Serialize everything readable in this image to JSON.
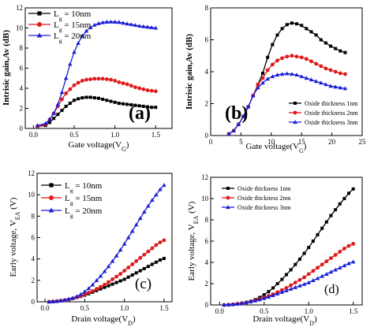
{
  "chart_data": [
    {
      "type": "line",
      "panel_label": "a",
      "panel_label_text": "(a)",
      "xlabel": "Gate voltage(V",
      "xlabel_sub": "G",
      "xlabel_close": ")",
      "ylabel": "Intrisic gain,Av (dB)",
      "xlim": [
        -0.1,
        1.7
      ],
      "ylim": [
        0,
        12
      ],
      "xticks": [
        0.0,
        0.5,
        1.0,
        1.5
      ],
      "xtick_labels": [
        "0.0",
        "0.5",
        "1.0",
        "1.5"
      ],
      "yticks": [
        0,
        2,
        4,
        6,
        8,
        10,
        12
      ],
      "ytick_labels": [
        "0",
        "2",
        "4",
        "6",
        "8",
        "10",
        "12"
      ],
      "legend_placement": "top-left",
      "series": [
        {
          "name": "L",
          "name_sub": "g",
          "name_rest": " = 10nm",
          "color": "#000000",
          "marker": "square",
          "x": [
            0.05,
            0.15,
            0.2,
            0.25,
            0.3,
            0.35,
            0.4,
            0.45,
            0.5,
            0.55,
            0.6,
            0.65,
            0.7,
            0.75,
            0.8,
            0.85,
            0.9,
            0.95,
            1.0,
            1.05,
            1.1,
            1.15,
            1.2,
            1.25,
            1.3,
            1.35,
            1.4,
            1.45,
            1.5
          ],
          "y": [
            0.2,
            0.3,
            0.6,
            1.0,
            1.4,
            1.8,
            2.2,
            2.5,
            2.8,
            2.95,
            3.05,
            3.1,
            3.1,
            3.05,
            3.0,
            2.9,
            2.8,
            2.7,
            2.6,
            2.5,
            2.45,
            2.4,
            2.35,
            2.3,
            2.25,
            2.2,
            2.15,
            2.1,
            2.1
          ]
        },
        {
          "name": "L",
          "name_sub": "g",
          "name_rest": " = 15nm",
          "color": "#e0191b",
          "marker": "circle",
          "x": [
            0.05,
            0.15,
            0.2,
            0.25,
            0.3,
            0.35,
            0.4,
            0.45,
            0.5,
            0.55,
            0.6,
            0.65,
            0.7,
            0.75,
            0.8,
            0.85,
            0.9,
            0.95,
            1.0,
            1.05,
            1.1,
            1.15,
            1.2,
            1.25,
            1.3,
            1.35,
            1.4,
            1.45,
            1.5
          ],
          "y": [
            0.2,
            0.4,
            0.9,
            1.5,
            2.2,
            2.9,
            3.5,
            3.9,
            4.3,
            4.55,
            4.75,
            4.85,
            4.9,
            4.95,
            4.95,
            4.95,
            4.9,
            4.85,
            4.75,
            4.6,
            4.5,
            4.4,
            4.25,
            4.1,
            4.0,
            3.9,
            3.8,
            3.75,
            3.7
          ]
        },
        {
          "name": "L",
          "name_sub": "g",
          "name_rest": " = 20nm",
          "color": "#1a1fd6",
          "marker": "triangle",
          "x": [
            0.05,
            0.15,
            0.2,
            0.25,
            0.3,
            0.35,
            0.4,
            0.45,
            0.5,
            0.55,
            0.6,
            0.65,
            0.7,
            0.75,
            0.8,
            0.85,
            0.9,
            0.95,
            1.0,
            1.05,
            1.1,
            1.15,
            1.2,
            1.25,
            1.3,
            1.35,
            1.4,
            1.45,
            1.5
          ],
          "y": [
            0.3,
            0.5,
            0.9,
            1.5,
            2.4,
            3.6,
            5.0,
            6.4,
            7.6,
            8.5,
            9.2,
            9.7,
            10.05,
            10.3,
            10.45,
            10.55,
            10.6,
            10.62,
            10.6,
            10.58,
            10.5,
            10.42,
            10.35,
            10.28,
            10.2,
            10.15,
            10.1,
            10.05,
            10.0
          ]
        }
      ]
    },
    {
      "type": "line",
      "panel_label": "b",
      "panel_label_text": "(b)",
      "xlabel": "Gate voltage(V",
      "xlabel_sub": "G",
      "xlabel_close": ")",
      "ylabel": "Intrisic gain,Av (dB)",
      "xlim": [
        0,
        25
      ],
      "ylim": [
        0,
        8
      ],
      "xticks": [
        0,
        5,
        10,
        15,
        20,
        25
      ],
      "xtick_labels": [
        "0",
        "5",
        "10",
        "15",
        "20",
        "25"
      ],
      "yticks": [
        0,
        2,
        4,
        6,
        8
      ],
      "ytick_labels": [
        "0",
        "2",
        "4",
        "6",
        "8"
      ],
      "legend_placement": "bottom-right",
      "series": [
        {
          "name": "Oxide thickness 1nm",
          "color": "#000000",
          "marker": "square",
          "x": [
            3,
            3.8,
            4.6,
            5.4,
            6.2,
            7,
            7.8,
            8.6,
            9.4,
            10.2,
            11,
            11.8,
            12.6,
            13.4,
            14.2,
            15,
            15.8,
            16.6,
            17.4,
            18.2,
            19,
            19.8,
            20.6,
            21.4,
            22.2
          ],
          "y": [
            0.1,
            0.3,
            0.7,
            1.2,
            1.8,
            2.5,
            3.2,
            3.9,
            4.9,
            5.7,
            6.3,
            6.7,
            6.95,
            7.05,
            7.0,
            6.9,
            6.7,
            6.5,
            6.3,
            6.0,
            5.8,
            5.6,
            5.45,
            5.3,
            5.2
          ]
        },
        {
          "name": "Oxide thickness 2nm",
          "color": "#e0191b",
          "marker": "circle",
          "x": [
            3,
            3.8,
            4.6,
            5.4,
            6.2,
            7,
            7.8,
            8.6,
            9.4,
            10.2,
            11,
            11.8,
            12.6,
            13.4,
            14.2,
            15,
            15.8,
            16.6,
            17.4,
            18.2,
            19,
            19.8,
            20.6,
            21.4,
            22.2
          ],
          "y": [
            0.1,
            0.3,
            0.7,
            1.2,
            1.8,
            2.5,
            3.2,
            3.6,
            4.1,
            4.45,
            4.7,
            4.85,
            4.95,
            5.0,
            4.95,
            4.9,
            4.8,
            4.65,
            4.5,
            4.35,
            4.2,
            4.1,
            4.0,
            3.9,
            3.85
          ]
        },
        {
          "name": "Oxide thickness 3nm",
          "color": "#1a1fd6",
          "marker": "triangle",
          "x": [
            3,
            3.8,
            4.6,
            5.4,
            6.2,
            7,
            7.8,
            8.6,
            9.4,
            10.2,
            11,
            11.8,
            12.6,
            13.4,
            14.2,
            15,
            15.8,
            16.6,
            17.4,
            18.2,
            19,
            19.8,
            20.6,
            21.4,
            22.2
          ],
          "y": [
            0.1,
            0.3,
            0.7,
            1.2,
            1.8,
            2.5,
            3.0,
            3.3,
            3.55,
            3.7,
            3.8,
            3.85,
            3.88,
            3.85,
            3.8,
            3.7,
            3.6,
            3.5,
            3.4,
            3.3,
            3.2,
            3.1,
            3.05,
            3.0,
            2.95
          ]
        }
      ]
    },
    {
      "type": "line",
      "panel_label": "c",
      "panel_label_text": "(c)",
      "xlabel": "Drain voltage(V",
      "xlabel_sub": "D",
      "xlabel_close": ")",
      "ylabel": "Early voltage, V",
      "ylabel_sub": "EA",
      "ylabel_close": " (V)",
      "xlim": [
        -0.1,
        1.6
      ],
      "ylim": [
        0,
        12
      ],
      "xticks": [
        0.0,
        0.5,
        1.0,
        1.5
      ],
      "xtick_labels": [
        "0.0",
        "0.5",
        "1.0",
        "1.5"
      ],
      "yticks": [
        0,
        2,
        4,
        6,
        8,
        10,
        12
      ],
      "ytick_labels": [
        "0",
        "2",
        "4",
        "6",
        "8",
        "10",
        "12"
      ],
      "legend_placement": "top-left",
      "series": [
        {
          "name": "L",
          "name_sub": "g",
          "name_rest": " = 10nm",
          "color": "#000000",
          "marker": "square",
          "x": [
            0.05,
            0.1,
            0.15,
            0.2,
            0.25,
            0.3,
            0.35,
            0.4,
            0.45,
            0.5,
            0.55,
            0.6,
            0.65,
            0.7,
            0.75,
            0.8,
            0.85,
            0.9,
            0.95,
            1.0,
            1.05,
            1.1,
            1.15,
            1.2,
            1.25,
            1.3,
            1.35,
            1.4,
            1.45,
            1.5
          ],
          "y": [
            0.0,
            0.02,
            0.05,
            0.1,
            0.15,
            0.22,
            0.3,
            0.4,
            0.5,
            0.62,
            0.75,
            0.9,
            1.05,
            1.2,
            1.35,
            1.5,
            1.65,
            1.8,
            1.95,
            2.1,
            2.3,
            2.5,
            2.7,
            2.9,
            3.1,
            3.3,
            3.5,
            3.7,
            3.9,
            4.05
          ]
        },
        {
          "name": "L",
          "name_sub": "g",
          "name_rest": " = 15nm",
          "color": "#e0191b",
          "marker": "circle",
          "x": [
            0.05,
            0.1,
            0.15,
            0.2,
            0.25,
            0.3,
            0.35,
            0.4,
            0.45,
            0.5,
            0.55,
            0.6,
            0.65,
            0.7,
            0.75,
            0.8,
            0.85,
            0.9,
            0.95,
            1.0,
            1.05,
            1.1,
            1.15,
            1.2,
            1.25,
            1.3,
            1.35,
            1.4,
            1.45,
            1.5
          ],
          "y": [
            0.0,
            0.02,
            0.05,
            0.1,
            0.15,
            0.22,
            0.32,
            0.42,
            0.55,
            0.7,
            0.85,
            1.0,
            1.2,
            1.4,
            1.6,
            1.85,
            2.1,
            2.35,
            2.6,
            2.9,
            3.2,
            3.5,
            3.8,
            4.1,
            4.4,
            4.7,
            5.0,
            5.3,
            5.55,
            5.75
          ]
        },
        {
          "name": "L",
          "name_sub": "g",
          "name_rest": " = 20nm",
          "color": "#1a1fd6",
          "marker": "triangle",
          "x": [
            0.05,
            0.1,
            0.15,
            0.2,
            0.25,
            0.3,
            0.35,
            0.4,
            0.45,
            0.5,
            0.55,
            0.6,
            0.65,
            0.7,
            0.75,
            0.8,
            0.85,
            0.9,
            0.95,
            1.0,
            1.05,
            1.1,
            1.15,
            1.2,
            1.25,
            1.3,
            1.35,
            1.4,
            1.45,
            1.5
          ],
          "y": [
            0.0,
            0.02,
            0.05,
            0.1,
            0.17,
            0.25,
            0.35,
            0.5,
            0.7,
            0.95,
            1.25,
            1.6,
            2.0,
            2.4,
            2.85,
            3.3,
            3.8,
            4.3,
            4.85,
            5.4,
            6.0,
            6.6,
            7.2,
            7.8,
            8.4,
            8.95,
            9.5,
            10.0,
            10.5,
            10.9
          ]
        }
      ]
    },
    {
      "type": "line",
      "panel_label": "d",
      "panel_label_text": "(d)",
      "xlabel": "Drain voltage(V",
      "xlabel_sub": "D",
      "xlabel_close": ")",
      "ylabel": "Early voltage, V",
      "ylabel_sub": "EA",
      "ylabel_close": " (V)",
      "xlim": [
        -0.1,
        1.6
      ],
      "ylim": [
        0,
        12
      ],
      "xticks": [
        0.0,
        0.5,
        1.0,
        1.5
      ],
      "xtick_labels": [
        "0.0",
        "0.5",
        "1.0",
        "1.5"
      ],
      "yticks": [
        0,
        2,
        4,
        6,
        8,
        10,
        12
      ],
      "ytick_labels": [
        "0",
        "2",
        "4",
        "6",
        "8",
        "10",
        "12"
      ],
      "legend_placement": "top-left",
      "series": [
        {
          "name": "Oxide thickness 1nm",
          "color": "#000000",
          "marker": "square",
          "x": [
            0.05,
            0.1,
            0.15,
            0.2,
            0.25,
            0.3,
            0.35,
            0.4,
            0.45,
            0.5,
            0.55,
            0.6,
            0.65,
            0.7,
            0.75,
            0.8,
            0.85,
            0.9,
            0.95,
            1.0,
            1.05,
            1.1,
            1.15,
            1.2,
            1.25,
            1.3,
            1.35,
            1.4,
            1.45,
            1.5
          ],
          "y": [
            0.0,
            0.02,
            0.05,
            0.1,
            0.17,
            0.25,
            0.35,
            0.5,
            0.7,
            0.95,
            1.25,
            1.6,
            2.0,
            2.4,
            2.85,
            3.3,
            3.8,
            4.3,
            4.85,
            5.4,
            6.0,
            6.6,
            7.2,
            7.8,
            8.4,
            8.95,
            9.5,
            10.0,
            10.5,
            10.9
          ]
        },
        {
          "name": "Oxide thickness 2nm",
          "color": "#e0191b",
          "marker": "circle",
          "x": [
            0.05,
            0.1,
            0.15,
            0.2,
            0.25,
            0.3,
            0.35,
            0.4,
            0.45,
            0.5,
            0.55,
            0.6,
            0.65,
            0.7,
            0.75,
            0.8,
            0.85,
            0.9,
            0.95,
            1.0,
            1.05,
            1.1,
            1.15,
            1.2,
            1.25,
            1.3,
            1.35,
            1.4,
            1.45,
            1.5
          ],
          "y": [
            0.0,
            0.02,
            0.05,
            0.1,
            0.15,
            0.22,
            0.32,
            0.42,
            0.55,
            0.7,
            0.85,
            1.0,
            1.2,
            1.4,
            1.6,
            1.85,
            2.1,
            2.35,
            2.6,
            2.9,
            3.2,
            3.5,
            3.8,
            4.1,
            4.4,
            4.7,
            5.0,
            5.3,
            5.55,
            5.75
          ]
        },
        {
          "name": "Oxide thickness 3nm",
          "color": "#1a1fd6",
          "marker": "triangle",
          "x": [
            0.05,
            0.1,
            0.15,
            0.2,
            0.25,
            0.3,
            0.35,
            0.4,
            0.45,
            0.5,
            0.55,
            0.6,
            0.65,
            0.7,
            0.75,
            0.8,
            0.85,
            0.9,
            0.95,
            1.0,
            1.05,
            1.1,
            1.15,
            1.2,
            1.25,
            1.3,
            1.35,
            1.4,
            1.45,
            1.5
          ],
          "y": [
            0.0,
            0.02,
            0.05,
            0.1,
            0.15,
            0.22,
            0.3,
            0.4,
            0.5,
            0.62,
            0.75,
            0.9,
            1.05,
            1.2,
            1.35,
            1.5,
            1.65,
            1.8,
            1.95,
            2.1,
            2.3,
            2.5,
            2.7,
            2.9,
            3.1,
            3.3,
            3.5,
            3.7,
            3.9,
            4.05
          ]
        }
      ]
    }
  ]
}
